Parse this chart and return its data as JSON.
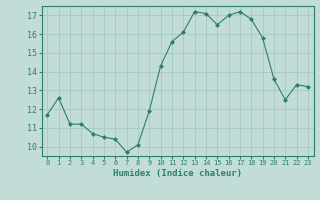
{
  "x": [
    0,
    1,
    2,
    3,
    4,
    5,
    6,
    7,
    8,
    9,
    10,
    11,
    12,
    13,
    14,
    15,
    16,
    17,
    18,
    19,
    20,
    21,
    22,
    23
  ],
  "y": [
    11.7,
    12.6,
    11.2,
    11.2,
    10.7,
    10.5,
    10.4,
    9.7,
    10.1,
    11.9,
    14.3,
    15.6,
    16.1,
    17.2,
    17.1,
    16.5,
    17.0,
    17.2,
    16.8,
    15.8,
    13.6,
    12.5,
    13.3,
    13.2
  ],
  "line_color": "#2e7d6e",
  "marker": "D",
  "marker_size": 2,
  "bg_color": "#c2ddd8",
  "grid_color": "#aaccc6",
  "xlabel": "Humidex (Indice chaleur)",
  "ylim": [
    9.5,
    17.5
  ],
  "xlim": [
    -0.5,
    23.5
  ],
  "yticks": [
    10,
    11,
    12,
    13,
    14,
    15,
    16,
    17
  ],
  "xticks": [
    0,
    1,
    2,
    3,
    4,
    5,
    6,
    7,
    8,
    9,
    10,
    11,
    12,
    13,
    14,
    15,
    16,
    17,
    18,
    19,
    20,
    21,
    22,
    23
  ],
  "tick_color": "#2e7d6e",
  "label_color": "#2e7d6e",
  "tick_fontsize": 5,
  "xlabel_fontsize": 6.5
}
